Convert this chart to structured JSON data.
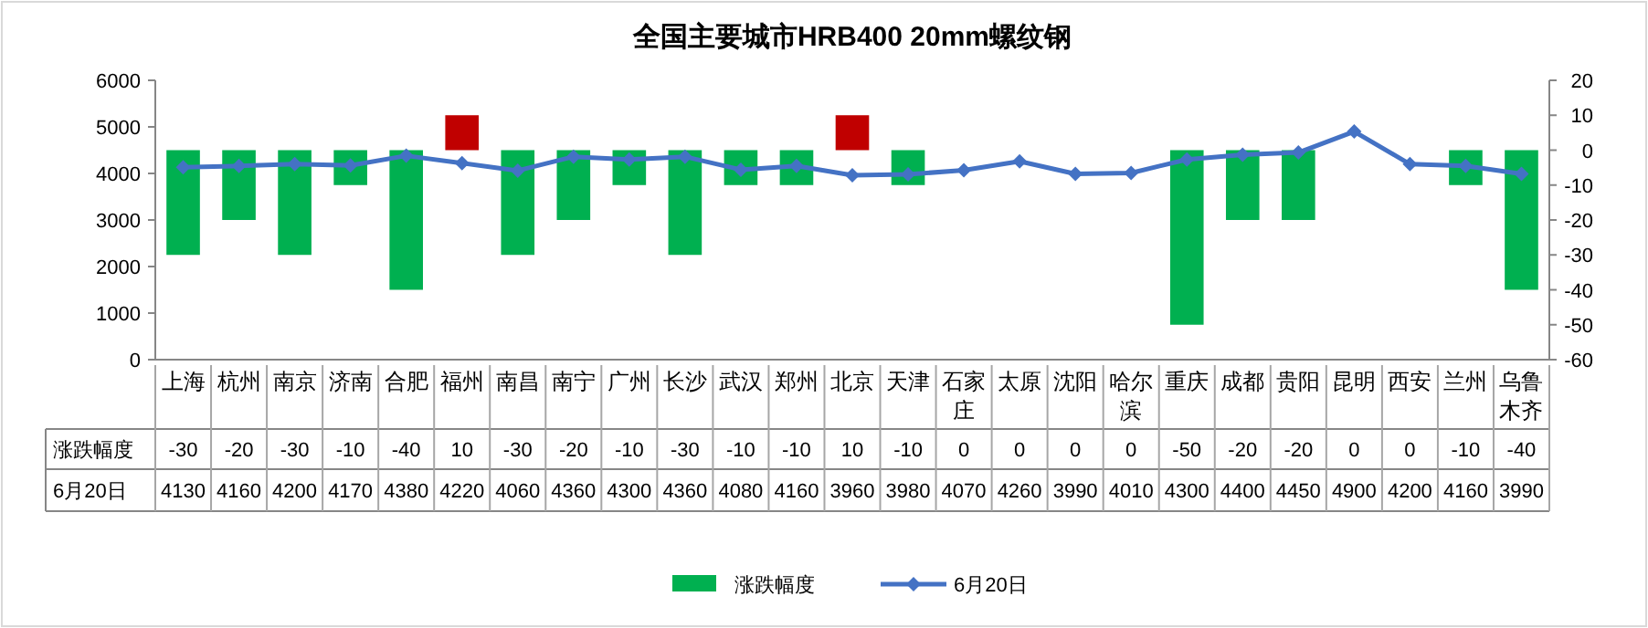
{
  "chart_data": {
    "type": "bar",
    "title": "全国主要城市HRB400 20mm螺纹钢",
    "categories": [
      "上海",
      "杭州",
      "南京",
      "济南",
      "合肥",
      "福州",
      "南昌",
      "南宁",
      "广州",
      "长沙",
      "武汉",
      "郑州",
      "北京",
      "天津",
      "石家庄",
      "太原",
      "沈阳",
      "哈尔滨",
      "重庆",
      "成都",
      "贵阳",
      "昆明",
      "西安",
      "兰州",
      "乌鲁木齐"
    ],
    "series": [
      {
        "name": "涨跌幅度",
        "axis": "y2",
        "colors": [
          "#00b050",
          "#00b050",
          "#00b050",
          "#00b050",
          "#00b050",
          "#c00000",
          "#00b050",
          "#00b050",
          "#00b050",
          "#00b050",
          "#00b050",
          "#00b050",
          "#c00000",
          "#00b050",
          "#00b050",
          "#00b050",
          "#00b050",
          "#00b050",
          "#00b050",
          "#00b050",
          "#00b050",
          "#00b050",
          "#00b050",
          "#00b050",
          "#00b050"
        ],
        "values": [
          -30,
          -20,
          -30,
          -10,
          -40,
          10,
          -30,
          -20,
          -10,
          -30,
          -10,
          -10,
          10,
          -10,
          0,
          0,
          0,
          0,
          -50,
          -20,
          -20,
          0,
          0,
          -10,
          -40
        ]
      },
      {
        "name": "6月20日",
        "type": "line",
        "color": "#4472c4",
        "marker": "diamond",
        "values": [
          4130,
          4160,
          4200,
          4170,
          4380,
          4220,
          4060,
          4360,
          4300,
          4360,
          4080,
          4160,
          3960,
          3980,
          4070,
          4260,
          3990,
          4010,
          4300,
          4400,
          4450,
          4900,
          4200,
          4160,
          3990
        ]
      }
    ],
    "ylim": [
      0,
      6000
    ],
    "yticks": [
      0,
      1000,
      2000,
      3000,
      4000,
      5000,
      6000
    ],
    "y2lim": [
      -60,
      20
    ],
    "y2ticks": [
      -60,
      -50,
      -40,
      -30,
      -20,
      -10,
      0,
      10,
      20
    ],
    "data_labels": true,
    "legend": "bottom"
  }
}
